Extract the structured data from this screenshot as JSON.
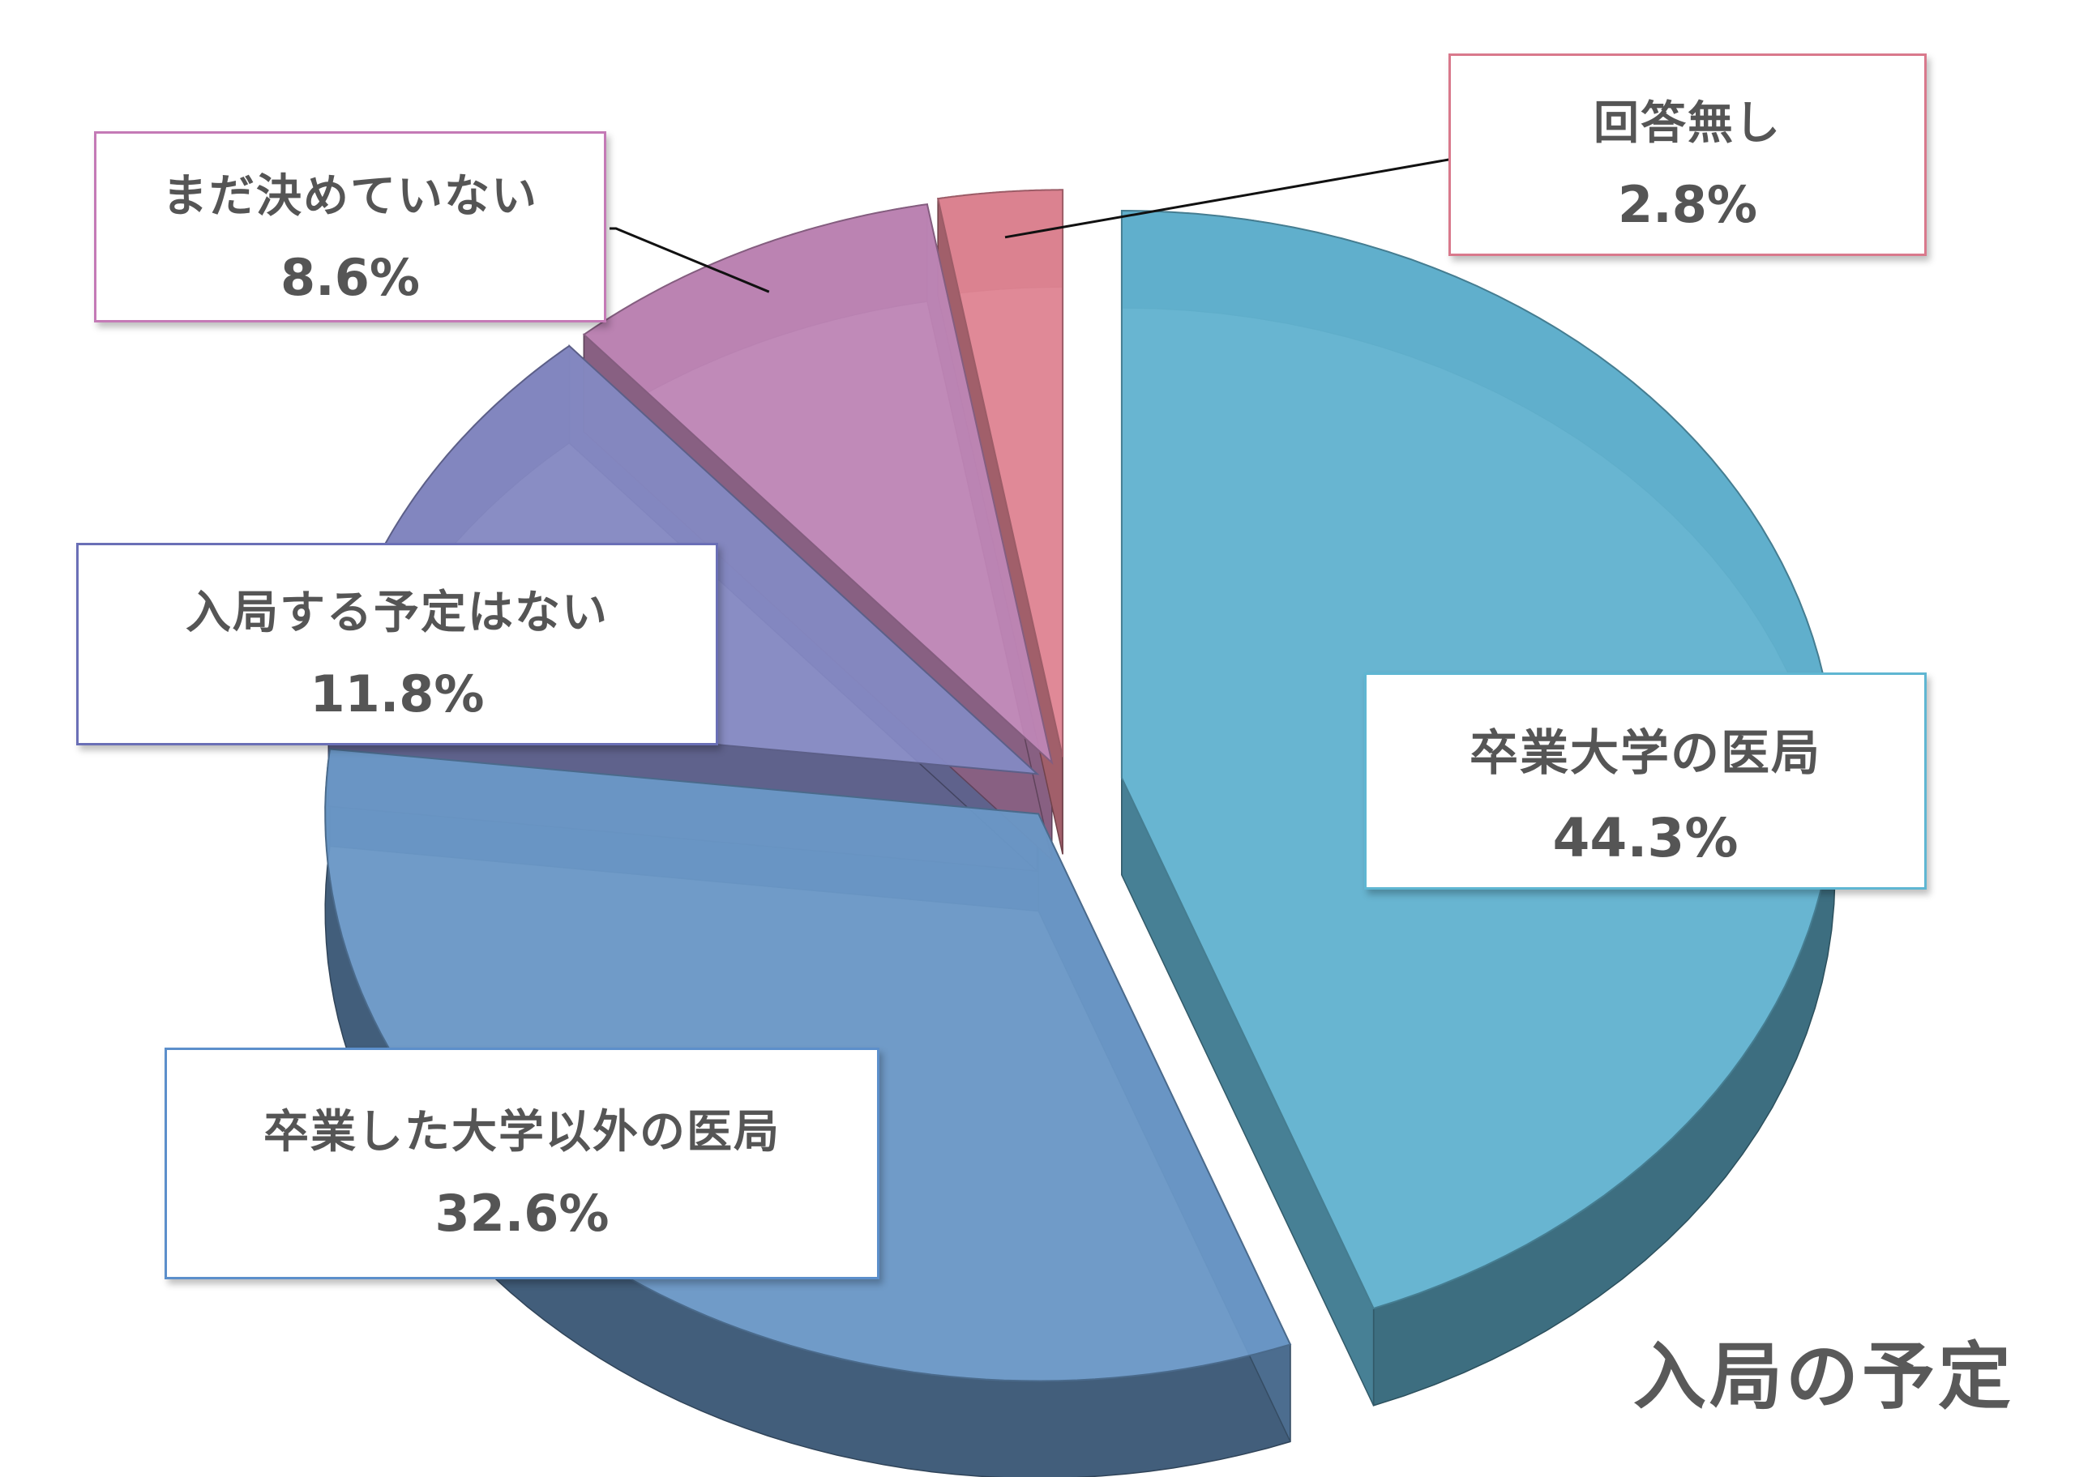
{
  "chart_data": {
    "type": "pie",
    "style": "3d-exploded",
    "title": "入局の予定",
    "slices": [
      {
        "label": "卒業大学の医局",
        "value": 44.3,
        "value_label": "44.3%",
        "color": "#62b2cf"
      },
      {
        "label": "卒業した大学以外の医局",
        "value": 32.6,
        "value_label": "32.6%",
        "color": "#6a97c6"
      },
      {
        "label": "入局する予定はない",
        "value": 11.8,
        "value_label": "11.8%",
        "color": "#8488c2"
      },
      {
        "label": "まだ決めていない",
        "value": 8.6,
        "value_label": "8.6%",
        "color": "#bd85b5"
      },
      {
        "label": "回答無し",
        "value": 2.8,
        "value_label": "2.8%",
        "color": "#df8493"
      }
    ]
  }
}
